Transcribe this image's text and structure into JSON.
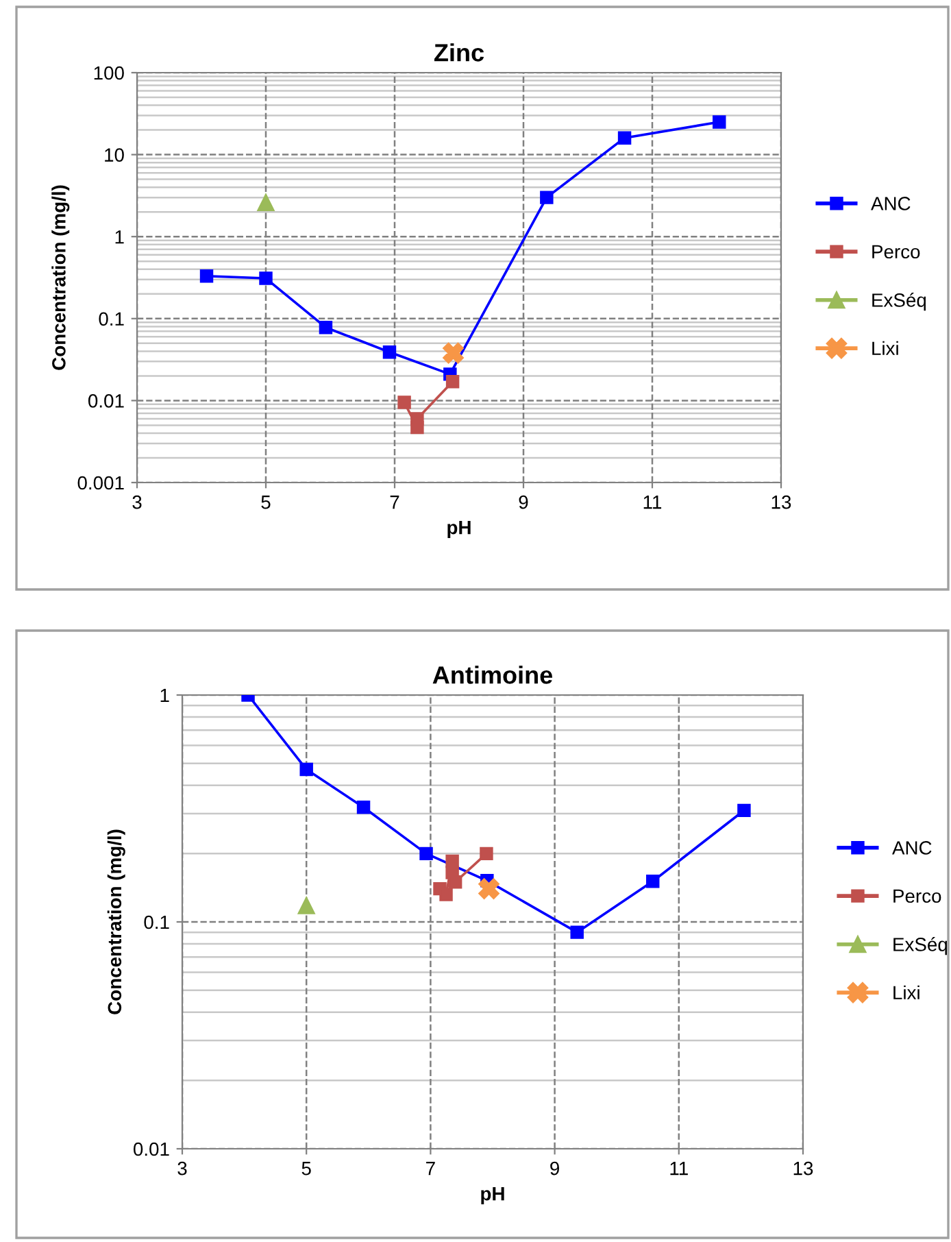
{
  "chart_data": [
    {
      "type": "line",
      "title": "Zinc",
      "xlabel": "pH",
      "ylabel": "Concentration (mg/l)",
      "log": "y",
      "grid": true,
      "legend": "right",
      "xlim": [
        3,
        13
      ],
      "xticks": [
        3,
        5,
        7,
        9,
        11,
        13
      ],
      "ylim": [
        0.001,
        100
      ],
      "yticks": [
        0.001,
        0.01,
        0.1,
        1,
        10,
        100
      ],
      "series": [
        {
          "name": "ANC",
          "color": "#0000ff",
          "marker": "square",
          "x": [
            4.08,
            5.0,
            5.93,
            6.92,
            7.86,
            9.36,
            10.57,
            12.04
          ],
          "values": [
            0.33,
            0.31,
            0.078,
            0.039,
            0.021,
            3.0,
            16,
            25
          ]
        },
        {
          "name": "Perco",
          "color": "#c0504d",
          "marker": "square",
          "x": [
            7.15,
            7.35,
            7.35,
            7.9
          ],
          "values": [
            0.0095,
            0.0047,
            0.006,
            0.017
          ]
        },
        {
          "name": "ExSéq",
          "color": "#9bbb59",
          "marker": "triangle",
          "x": [
            5.0
          ],
          "values": [
            2.6
          ]
        },
        {
          "name": "Lixi",
          "color": "#f79646",
          "marker": "cross",
          "x": [
            7.91
          ],
          "values": [
            0.038
          ]
        }
      ]
    },
    {
      "type": "line",
      "title": "Antimoine",
      "xlabel": "pH",
      "ylabel": "Concentration (mg/l)",
      "log": "y",
      "grid": true,
      "legend": "right",
      "xlim": [
        3,
        13
      ],
      "xticks": [
        3,
        5,
        7,
        9,
        11,
        13
      ],
      "ylim": [
        0.01,
        1
      ],
      "yticks": [
        0.01,
        0.1,
        1
      ],
      "series": [
        {
          "name": "ANC",
          "color": "#0000ff",
          "marker": "square",
          "x": [
            4.06,
            5.0,
            5.92,
            6.93,
            7.91,
            9.36,
            10.58,
            12.05
          ],
          "values": [
            1.0,
            0.47,
            0.32,
            0.2,
            0.152,
            0.09,
            0.151,
            0.31
          ]
        },
        {
          "name": "Perco",
          "color": "#c0504d",
          "marker": "square",
          "x": [
            7.15,
            7.25,
            7.35,
            7.35,
            7.4,
            7.9
          ],
          "values": [
            0.14,
            0.132,
            0.185,
            0.165,
            0.15,
            0.2
          ]
        },
        {
          "name": "ExSéq",
          "color": "#9bbb59",
          "marker": "triangle",
          "x": [
            5.0
          ],
          "values": [
            0.118
          ]
        },
        {
          "name": "Lixi",
          "color": "#f79646",
          "marker": "cross",
          "x": [
            7.94
          ],
          "values": [
            0.14
          ]
        }
      ]
    }
  ]
}
